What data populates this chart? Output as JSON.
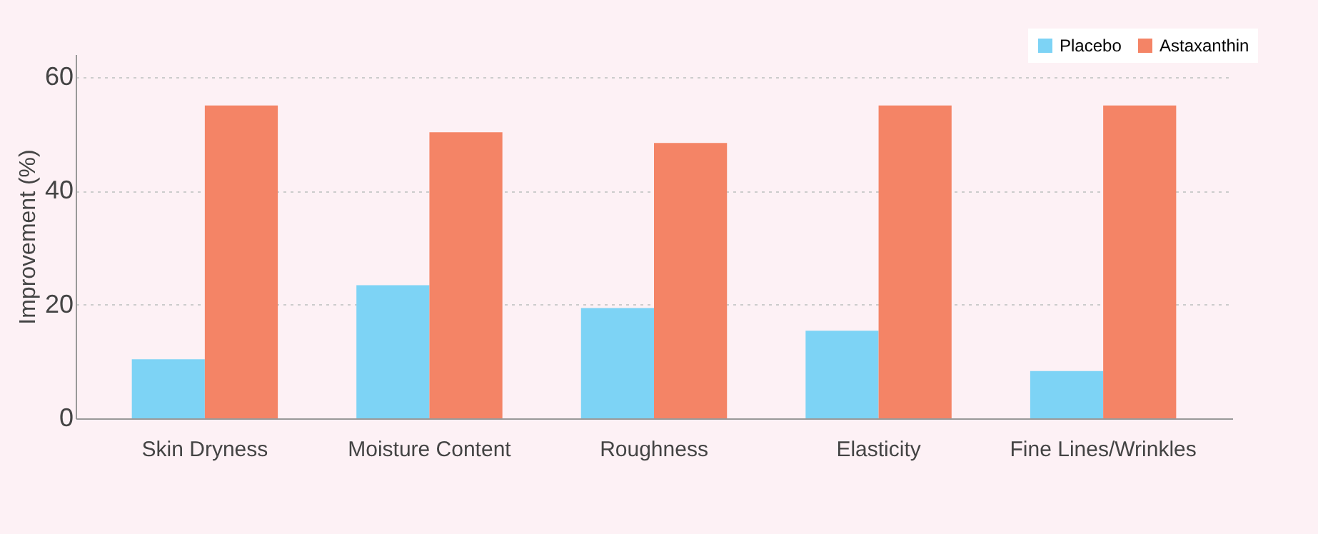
{
  "chart_data": {
    "type": "bar",
    "ylabel": "Improvement (%)",
    "categories": [
      "Skin Dryness",
      "Moisture Content",
      "Roughness",
      "Elasticity",
      "Fine Lines/Wrinkles"
    ],
    "series": [
      {
        "name": "Placebo",
        "color": "#7dd3f5",
        "values": [
          10.4,
          23.4,
          19.4,
          15.4,
          8.3
        ]
      },
      {
        "name": "Astaxanthin",
        "color": "#f48466",
        "values": [
          55,
          50.3,
          48.4,
          55,
          55
        ]
      }
    ],
    "ylim": [
      0,
      64
    ],
    "yticks": [
      0,
      20,
      40,
      60
    ],
    "grid": "y",
    "legend": "top right"
  }
}
